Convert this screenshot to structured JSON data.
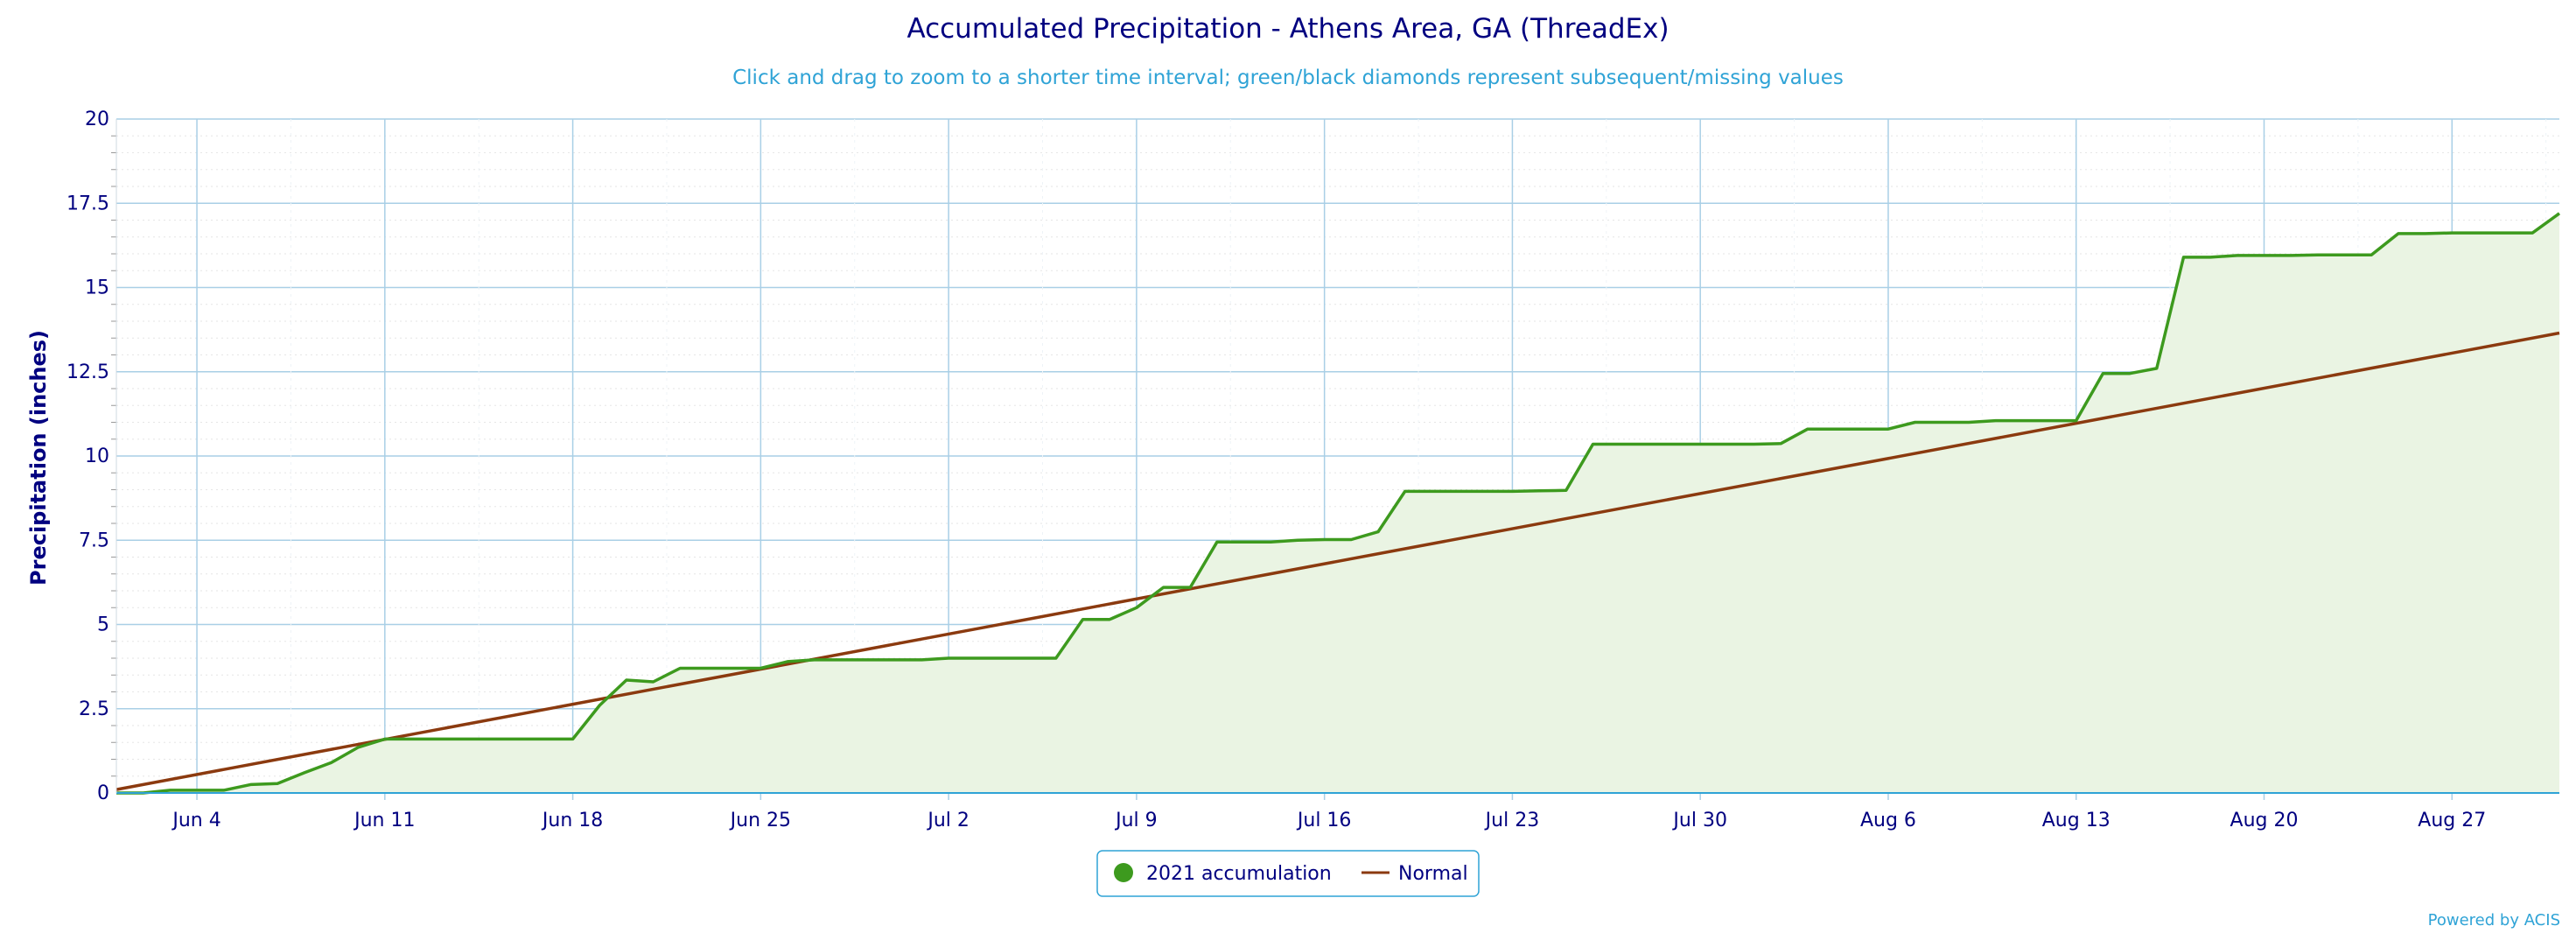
{
  "chart_data": {
    "type": "line",
    "title": "Accumulated Precipitation - Athens Area, GA (ThreadEx)",
    "subtitle": "Click and drag to zoom to a shorter time interval; green/black diamonds represent subsequent/missing values",
    "ylabel": "Precipitation (inches)",
    "xlabel": "",
    "ylim": [
      0,
      20
    ],
    "xlim": [
      "2021-06-01",
      "2021-08-31"
    ],
    "y_ticks": [
      0,
      2.5,
      5,
      7.5,
      10,
      12.5,
      15,
      17.5,
      20
    ],
    "y_tick_labels": [
      "0",
      "2.5",
      "5",
      "7.5",
      "10",
      "12.5",
      "15",
      "17.5",
      "20"
    ],
    "x_ticks": [
      "2021-06-04",
      "2021-06-11",
      "2021-06-18",
      "2021-06-25",
      "2021-07-02",
      "2021-07-09",
      "2021-07-16",
      "2021-07-23",
      "2021-07-30",
      "2021-08-06",
      "2021-08-13",
      "2021-08-20",
      "2021-08-27"
    ],
    "x_tick_labels": [
      "Jun 4",
      "Jun 11",
      "Jun 18",
      "Jun 25",
      "Jul 2",
      "Jul 9",
      "Jul 16",
      "Jul 23",
      "Jul 30",
      "Aug 6",
      "Aug 13",
      "Aug 20",
      "Aug 27"
    ],
    "grid": true,
    "legend_position": "bottom-center",
    "series": [
      {
        "name": "2021 accumulation",
        "color": "#3d9a1e",
        "fill": "#eaf4e3",
        "x": [
          "2021-06-01",
          "2021-06-02",
          "2021-06-03",
          "2021-06-04",
          "2021-06-05",
          "2021-06-06",
          "2021-06-07",
          "2021-06-08",
          "2021-06-09",
          "2021-06-10",
          "2021-06-11",
          "2021-06-12",
          "2021-06-13",
          "2021-06-14",
          "2021-06-15",
          "2021-06-16",
          "2021-06-17",
          "2021-06-18",
          "2021-06-19",
          "2021-06-20",
          "2021-06-21",
          "2021-06-22",
          "2021-06-23",
          "2021-06-24",
          "2021-06-25",
          "2021-06-26",
          "2021-06-27",
          "2021-06-28",
          "2021-06-29",
          "2021-06-30",
          "2021-07-01",
          "2021-07-02",
          "2021-07-03",
          "2021-07-04",
          "2021-07-05",
          "2021-07-06",
          "2021-07-07",
          "2021-07-08",
          "2021-07-09",
          "2021-07-10",
          "2021-07-11",
          "2021-07-12",
          "2021-07-13",
          "2021-07-14",
          "2021-07-15",
          "2021-07-16",
          "2021-07-17",
          "2021-07-18",
          "2021-07-19",
          "2021-07-20",
          "2021-07-21",
          "2021-07-22",
          "2021-07-23",
          "2021-07-24",
          "2021-07-25",
          "2021-07-26",
          "2021-07-27",
          "2021-07-28",
          "2021-07-29",
          "2021-07-30",
          "2021-07-31",
          "2021-08-01",
          "2021-08-02",
          "2021-08-03",
          "2021-08-04",
          "2021-08-05",
          "2021-08-06",
          "2021-08-07",
          "2021-08-08",
          "2021-08-09",
          "2021-08-10",
          "2021-08-11",
          "2021-08-12",
          "2021-08-13",
          "2021-08-14",
          "2021-08-15",
          "2021-08-16",
          "2021-08-17",
          "2021-08-18",
          "2021-08-19",
          "2021-08-20",
          "2021-08-21",
          "2021-08-22",
          "2021-08-23",
          "2021-08-24",
          "2021-08-25",
          "2021-08-26",
          "2021-08-27",
          "2021-08-28",
          "2021-08-29",
          "2021-08-30",
          "2021-08-31"
        ],
        "values": [
          0,
          0,
          0.08,
          0.08,
          0.08,
          0.25,
          0.28,
          0.6,
          0.9,
          1.35,
          1.6,
          1.6,
          1.6,
          1.6,
          1.6,
          1.6,
          1.6,
          1.6,
          2.6,
          3.35,
          3.3,
          3.7,
          3.7,
          3.7,
          3.7,
          3.9,
          3.95,
          3.95,
          3.95,
          3.95,
          3.95,
          4.0,
          4.0,
          4.0,
          4.0,
          4.0,
          5.15,
          5.15,
          5.5,
          6.1,
          6.1,
          7.45,
          7.45,
          7.45,
          7.5,
          7.52,
          7.52,
          7.75,
          8.95,
          8.95,
          8.95,
          8.95,
          8.95,
          8.97,
          8.98,
          10.35,
          10.35,
          10.35,
          10.35,
          10.35,
          10.35,
          10.35,
          10.37,
          10.8,
          10.8,
          10.8,
          10.8,
          11.0,
          11.0,
          11.0,
          11.05,
          11.05,
          11.05,
          11.05,
          12.45,
          12.45,
          12.6,
          15.9,
          15.9,
          15.95,
          15.95,
          15.95,
          15.97,
          15.97,
          15.97,
          16.6,
          16.6,
          16.62,
          16.62,
          16.62,
          16.62,
          17.2
        ]
      },
      {
        "name": "Normal",
        "color": "#8b3a0f",
        "x": [
          "2021-06-01",
          "2021-08-31"
        ],
        "values": [
          0.1,
          13.65
        ]
      }
    ]
  },
  "legend": {
    "items": [
      {
        "label": "2021 accumulation",
        "color": "#3d9a1e",
        "symbol": "circle"
      },
      {
        "label": "Normal",
        "color": "#8b3a0f",
        "symbol": "line"
      }
    ]
  },
  "credit": "Powered by ACIS"
}
